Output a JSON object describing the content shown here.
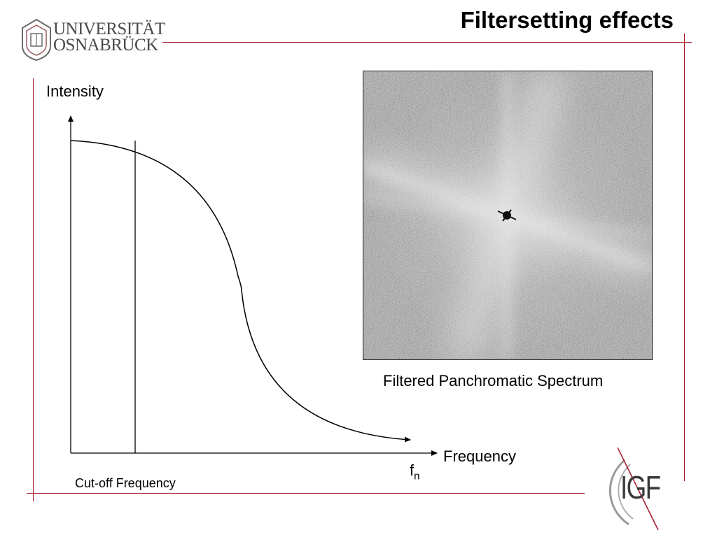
{
  "slide": {
    "title": "Filtersetting effects"
  },
  "university_logo": {
    "line1": "UNIVERSITÄT",
    "line2": "OSNABRÜCK"
  },
  "diagram": {
    "y_axis_label": "Intensity",
    "x_axis_label": "Frequency",
    "fn_label": "f",
    "fn_subscript": "n",
    "cutoff_label": "Cut-off Frequency"
  },
  "spectrum": {
    "caption": "Filtered Panchromatic Spectrum"
  },
  "igf_logo": {
    "text": "IGF"
  },
  "colors": {
    "accent_line": "#a3182a",
    "text": "#000000",
    "logo_gray": "#4a4a4a"
  }
}
